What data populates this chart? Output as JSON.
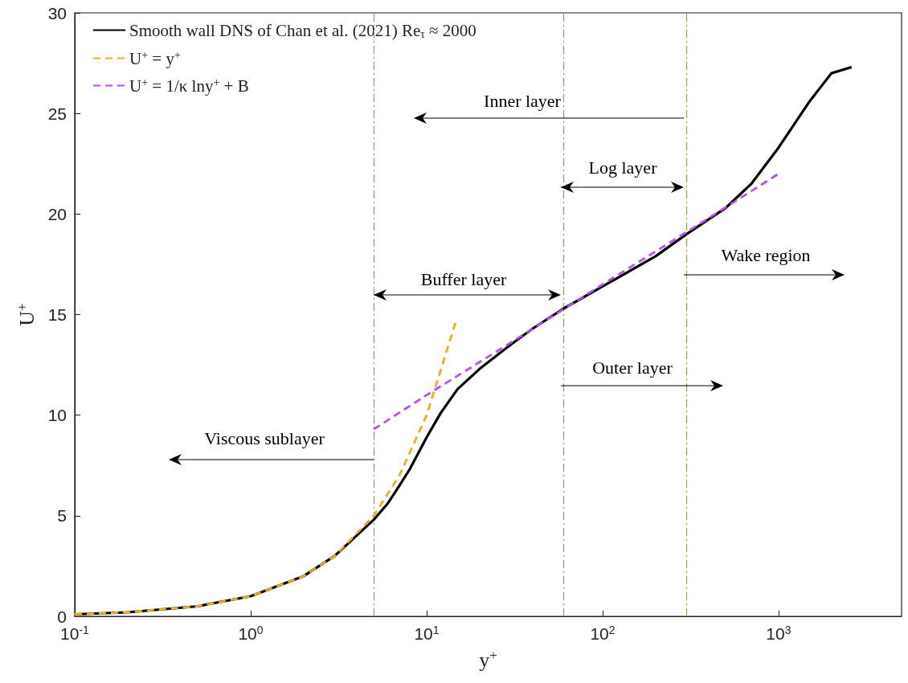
{
  "chart_data": {
    "type": "line",
    "xlabel": "y$^{+}$",
    "ylabel": "U$^{+}$",
    "log": "x",
    "xlim": [
      0.1,
      5000
    ],
    "xticks": [
      {
        "value": 0.1,
        "label": "10$^{-1}$"
      },
      {
        "value": 1,
        "label": "10$^{0}$"
      },
      {
        "value": 10,
        "label": "10$^{1}$"
      },
      {
        "value": 100,
        "label": "10$^{2}$"
      },
      {
        "value": 1000,
        "label": "10$^{3}$"
      }
    ],
    "ylim": [
      0,
      30
    ],
    "yticks": [
      0,
      5,
      10,
      15,
      20,
      25,
      30
    ],
    "grid": false,
    "legend": "top left",
    "marker": "none",
    "series": [
      {
        "name": "Smooth wall DNS of Chan et al. (2021) Re$_{τ}$ ≈ 2000",
        "color": "#000000",
        "line_style": "solid",
        "x": [
          0.1,
          0.2,
          0.5,
          1,
          2,
          3,
          5,
          6,
          7,
          8,
          10,
          12,
          15,
          20,
          30,
          40,
          60,
          100,
          200,
          300,
          500,
          700,
          1000,
          1500,
          2000,
          2600
        ],
        "values": [
          0.1,
          0.2,
          0.5,
          1.0,
          2.0,
          3.0,
          4.8,
          5.6,
          6.5,
          7.3,
          8.9,
          10.1,
          11.3,
          12.3,
          13.5,
          14.3,
          15.3,
          16.4,
          17.9,
          19.0,
          20.3,
          21.5,
          23.3,
          25.6,
          27.0,
          27.3
        ]
      },
      {
        "name": "U$^{+}$ = y$^{+}$",
        "color": "#edb120",
        "line_style": "dashed",
        "x": [
          0.1,
          0.2,
          0.5,
          1,
          2,
          3,
          5,
          7,
          10,
          14.7
        ],
        "values": [
          0.1,
          0.2,
          0.5,
          1,
          2,
          3,
          5,
          7,
          10,
          14.7
        ]
      },
      {
        "name": "U$^{+}$ = 1/κ lny$^{+}$ + B",
        "color": "#b84ff0",
        "line_style": "dashed",
        "x": [
          5,
          10,
          30,
          100,
          300,
          1000
        ],
        "values": [
          9.3,
          11.0,
          13.6,
          16.5,
          19.1,
          22.0
        ]
      }
    ],
    "ref_lines": [
      {
        "axis": "x",
        "value": 5,
        "color": "#8aa05a",
        "line_style": "dashdot"
      },
      {
        "axis": "x",
        "value": 60,
        "color": "#8aa05a",
        "line_style": "dashdot"
      },
      {
        "axis": "x",
        "value": 300,
        "color": "#8aa05a",
        "line_style": "dashdot"
      }
    ],
    "annotations": [
      "Inner layer",
      "Log layer",
      "Wake region",
      "Buffer layer",
      "Outer layer",
      "Viscous sublayer"
    ]
  }
}
